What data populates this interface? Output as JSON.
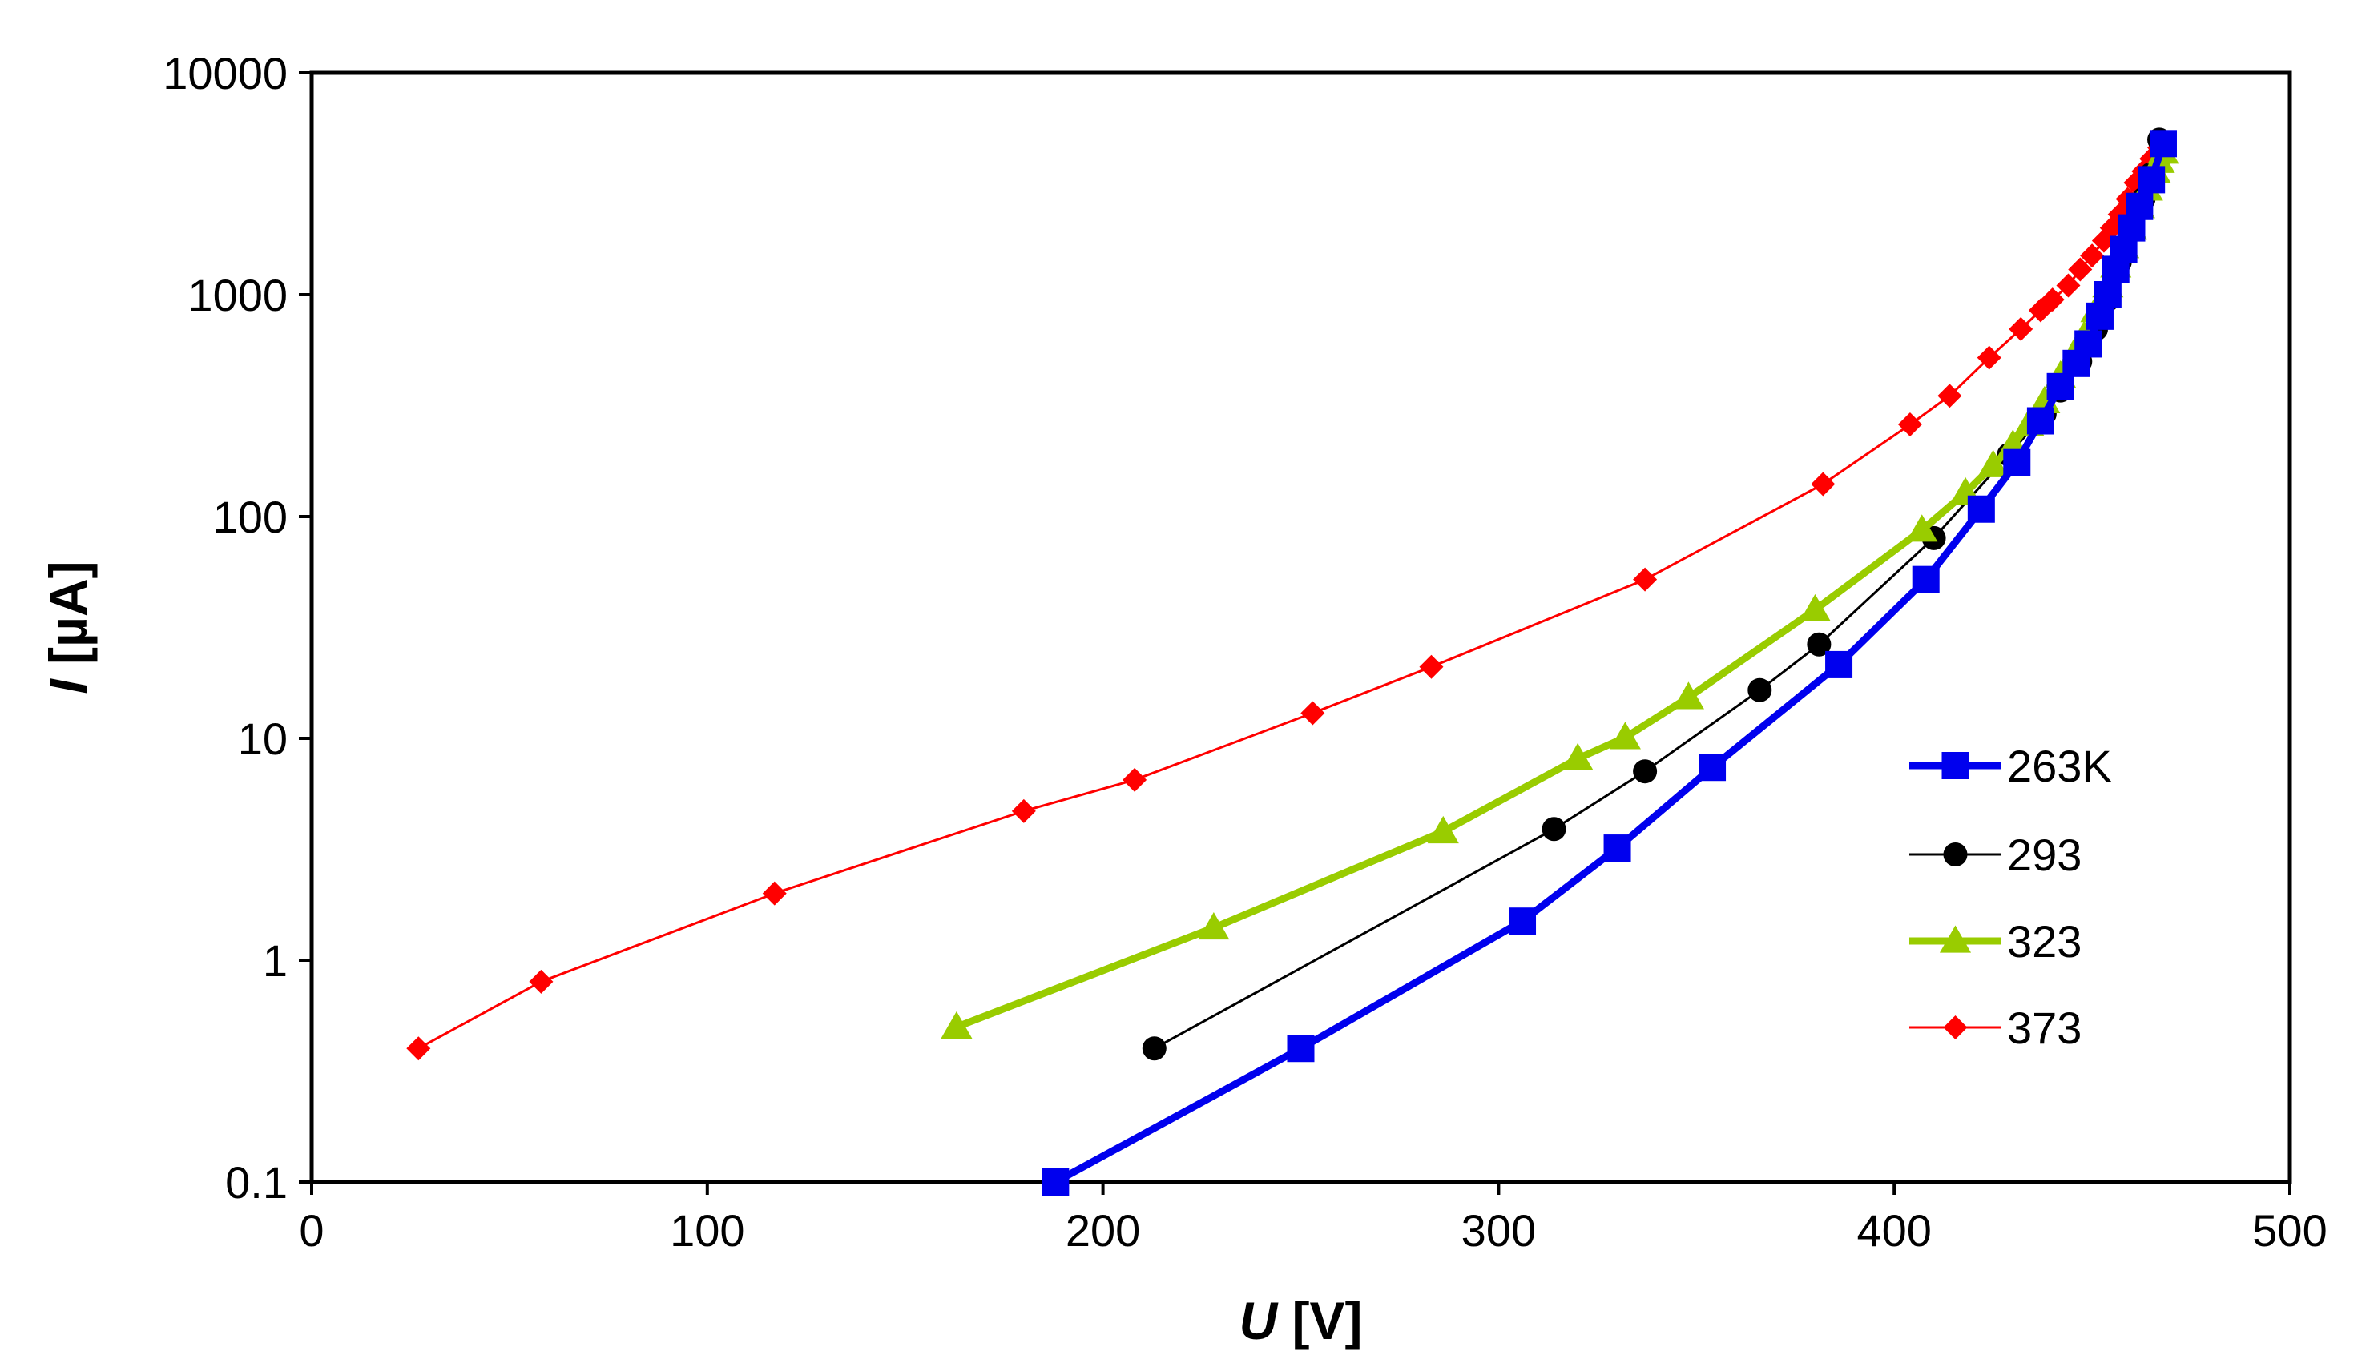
{
  "chart_data": {
    "type": "line",
    "x_label": {
      "italic": "U",
      "unit": " [V]"
    },
    "y_label": {
      "italic": "I",
      "unit": " [µA]"
    },
    "xlim": [
      0,
      500
    ],
    "ylim": [
      0.1,
      10000
    ],
    "y_scale": "log",
    "x_ticks": [
      {
        "value": 0,
        "label": "0"
      },
      {
        "value": 100,
        "label": "100"
      },
      {
        "value": 200,
        "label": "200"
      },
      {
        "value": 300,
        "label": "300"
      },
      {
        "value": 400,
        "label": "400"
      },
      {
        "value": 500,
        "label": "500"
      }
    ],
    "y_ticks": [
      {
        "value": 0.1,
        "label": "0.1"
      },
      {
        "value": 1,
        "label": "1"
      },
      {
        "value": 10,
        "label": "10"
      },
      {
        "value": 100,
        "label": "100"
      },
      {
        "value": 1000,
        "label": "1000"
      },
      {
        "value": 10000,
        "label": "10000"
      }
    ],
    "grid": false,
    "legend_position": "right",
    "series": [
      {
        "name": "263K",
        "color": "#0000ee",
        "marker": "square",
        "line_weight": "thick",
        "points": [
          [
            188,
            0.1
          ],
          [
            250,
            0.4
          ],
          [
            306,
            1.5
          ],
          [
            330,
            3.2
          ],
          [
            354,
            7.4
          ],
          [
            386,
            21.5
          ],
          [
            408,
            52
          ],
          [
            422,
            108
          ],
          [
            431,
            175
          ],
          [
            437,
            270
          ],
          [
            442,
            385
          ],
          [
            446,
            490
          ],
          [
            449,
            600
          ],
          [
            452,
            800
          ],
          [
            454,
            1000
          ],
          [
            456,
            1300
          ],
          [
            458,
            1600
          ],
          [
            460,
            2000
          ],
          [
            462,
            2500
          ],
          [
            465,
            3300
          ],
          [
            468,
            4800
          ]
        ]
      },
      {
        "name": "293",
        "color": "#000000",
        "marker": "circle",
        "line_weight": "thin",
        "points": [
          [
            213,
            0.4
          ],
          [
            314,
            3.9
          ],
          [
            337,
            7.1
          ],
          [
            366,
            16.5
          ],
          [
            381,
            26.5
          ],
          [
            410,
            80
          ],
          [
            429,
            190
          ],
          [
            438,
            290
          ],
          [
            442,
            370
          ],
          [
            447,
            500
          ],
          [
            451,
            700
          ],
          [
            454,
            950
          ],
          [
            457,
            1400
          ],
          [
            460,
            2000
          ],
          [
            463,
            2700
          ],
          [
            465,
            3500
          ],
          [
            467,
            5000
          ]
        ]
      },
      {
        "name": "323",
        "color": "#99cc00",
        "marker": "triangle",
        "line_weight": "thick",
        "points": [
          [
            163,
            0.5
          ],
          [
            228,
            1.4
          ],
          [
            286,
            3.8
          ],
          [
            320,
            8.1
          ],
          [
            332,
            10.1
          ],
          [
            348,
            15.3
          ],
          [
            380,
            38
          ],
          [
            407,
            87
          ],
          [
            418,
            128
          ],
          [
            425,
            170
          ],
          [
            430,
            210
          ],
          [
            434,
            260
          ],
          [
            438,
            330
          ],
          [
            442,
            430
          ],
          [
            445,
            520
          ],
          [
            448,
            650
          ],
          [
            451,
            850
          ],
          [
            454,
            1100
          ],
          [
            456,
            1350
          ],
          [
            458,
            1650
          ],
          [
            460,
            2000
          ],
          [
            462,
            2500
          ],
          [
            464,
            3000
          ],
          [
            466,
            3600
          ],
          [
            467,
            4000
          ],
          [
            468,
            4400
          ]
        ]
      },
      {
        "name": "373",
        "color": "#ff0000",
        "marker": "diamond",
        "line_weight": "thin",
        "points": [
          [
            27,
            0.4
          ],
          [
            58,
            0.8
          ],
          [
            117,
            2.0
          ],
          [
            180,
            4.7
          ],
          [
            208,
            6.5
          ],
          [
            253,
            13
          ],
          [
            283,
            21
          ],
          [
            337,
            52
          ],
          [
            382,
            140
          ],
          [
            404,
            260
          ],
          [
            414,
            350
          ],
          [
            424,
            520
          ],
          [
            432,
            700
          ],
          [
            437,
            850
          ],
          [
            440,
            950
          ],
          [
            444,
            1100
          ],
          [
            447,
            1300
          ],
          [
            450,
            1500
          ],
          [
            453,
            1750
          ],
          [
            455,
            2000
          ],
          [
            457,
            2300
          ],
          [
            459,
            2700
          ],
          [
            461,
            3200
          ],
          [
            463,
            3600
          ],
          [
            465,
            4100
          ],
          [
            467,
            4600
          ]
        ]
      }
    ]
  }
}
